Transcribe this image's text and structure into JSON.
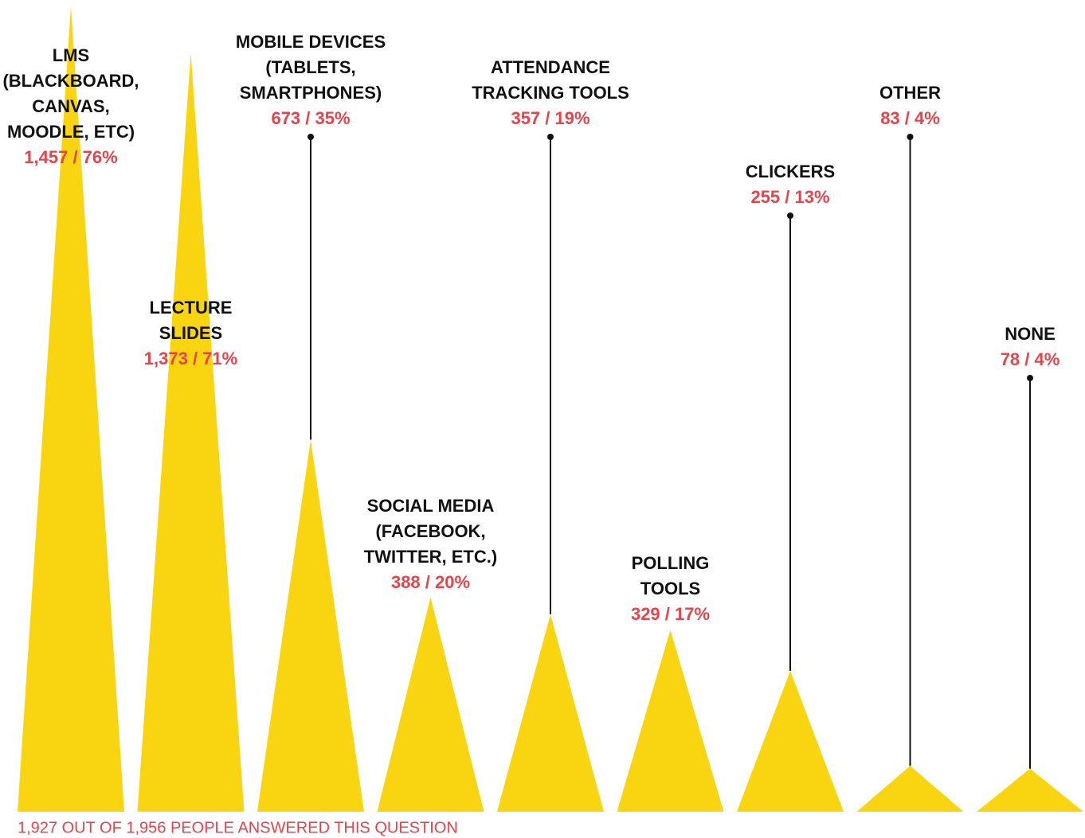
{
  "chart_data": {
    "type": "triangle-bar",
    "categories": [
      [
        "LMS",
        "(BLACKBOARD,",
        "CANVAS,",
        "MOODLE, ETC)"
      ],
      [
        "LECTURE",
        "SLIDES"
      ],
      [
        "MOBILE DEVICES",
        "(TABLETS,",
        "SMARTPHONES)"
      ],
      [
        "SOCIAL MEDIA",
        "(FACEBOOK,",
        "TWITTER, ETC.)"
      ],
      [
        "ATTENDANCE",
        "TRACKING TOOLS"
      ],
      [
        "POLLING",
        "TOOLS"
      ],
      [
        "CLICKERS"
      ],
      [
        "OTHER"
      ],
      [
        "NONE"
      ]
    ],
    "values": [
      1457,
      1373,
      673,
      388,
      357,
      329,
      255,
      83,
      78
    ],
    "value_labels": [
      "1,457 / 76%",
      "1,373 / 71%",
      "673 / 35%",
      "388 / 20%",
      "357 / 19%",
      "329 / 17%",
      "255 / 13%",
      "83 / 4%",
      "78 / 4%"
    ],
    "color": "#f9d511",
    "note": "1,927 OUT OF 1,956 PEOPLE ANSWERED THIS QUESTION"
  }
}
